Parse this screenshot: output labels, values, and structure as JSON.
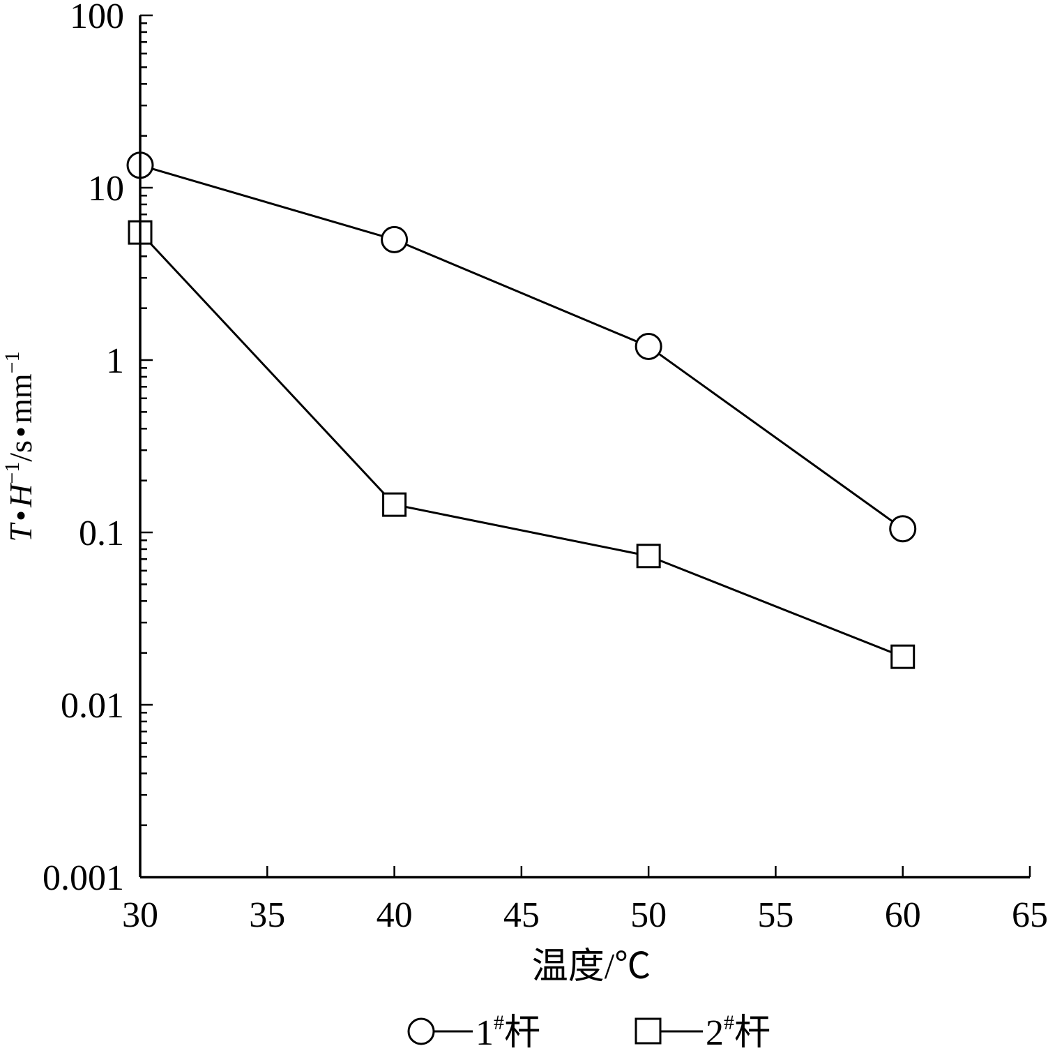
{
  "chart_data": {
    "type": "line",
    "x": [
      30,
      40,
      50,
      60
    ],
    "series": [
      {
        "name": "1",
        "marker": "circle",
        "values": [
          13.5,
          5.0,
          1.2,
          0.105
        ]
      },
      {
        "name": "2",
        "marker": "square",
        "values": [
          5.5,
          0.145,
          0.073,
          0.019
        ]
      }
    ],
    "xlabel": "温度/℃",
    "ylabel": {
      "T": "T",
      "dot1": "•",
      "H": "H",
      "exp1": "−1",
      "unit": "/s",
      "dot2": "•",
      "mm": "mm",
      "exp2": "−1"
    },
    "xlim": [
      30,
      65
    ],
    "xticks": [
      "30",
      "35",
      "40",
      "45",
      "50",
      "55",
      "60",
      "65"
    ],
    "yscale": "log",
    "ylim": [
      0.001,
      100
    ],
    "yticks": [
      "0.001",
      "0.01",
      "0.1",
      "1",
      "10",
      "100"
    ],
    "legend_position": "bottom-center",
    "legend": [
      {
        "num": "1",
        "sup": "#",
        "text": "杆"
      },
      {
        "num": "2",
        "sup": "#",
        "text": "杆"
      }
    ],
    "grid": false
  }
}
